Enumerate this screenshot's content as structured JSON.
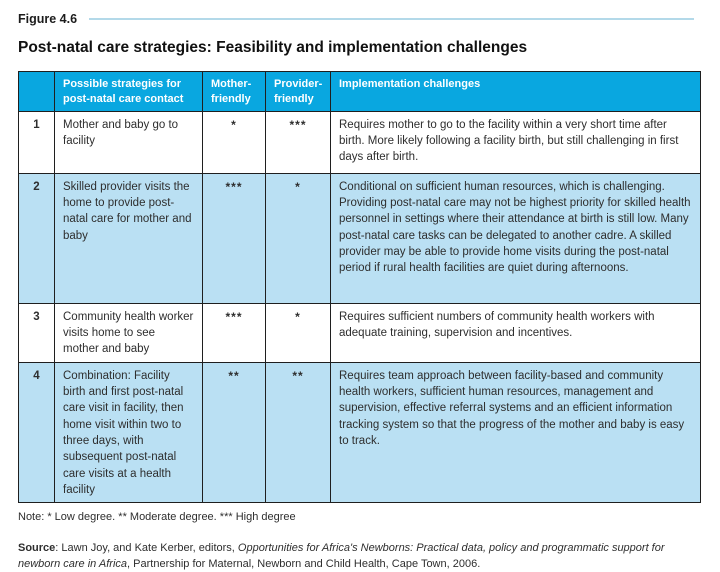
{
  "figure": {
    "label": "Figure 4.6",
    "title": "Post-natal care strategies: Feasibility and implementation challenges"
  },
  "table": {
    "headers": {
      "number": "",
      "strategy": "Possible strategies for post-natal care contact",
      "mother": "Mother-friendly",
      "provider": "Provider-friendly",
      "challenges": "Implementation challenges"
    },
    "rows": [
      {
        "number": "1",
        "strategy": "Mother and baby go to facility",
        "mother": "*",
        "provider": "***",
        "challenges": "Requires mother to go to the facility within a very short time after birth. More likely following a facility birth, but still challenging in first days after birth."
      },
      {
        "number": "2",
        "strategy": "Skilled provider visits the home to provide post-natal care for mother and baby",
        "mother": "***",
        "provider": "*",
        "challenges": "Conditional on sufficient human resources, which is challenging. Providing post-natal care may not be highest priority for skilled health personnel in settings where their attendance at birth is still low. Many post-natal care tasks can be delegated to another cadre. A skilled provider may be able to provide home visits during the post-natal period if rural health facilities are quiet during afternoons."
      },
      {
        "number": "3",
        "strategy": "Community health worker visits home to see mother and baby",
        "mother": "***",
        "provider": "*",
        "challenges": "Requires sufficient numbers of community health workers with adequate training, supervision and incentives."
      },
      {
        "number": "4",
        "strategy": "Combination: Facility birth and first post-natal care visit in facility, then home visit within two to three days, with subsequent post-natal care visits at a health facility",
        "mother": "**",
        "provider": "**",
        "challenges": "Requires team approach between facility-based and community health workers, sufficient human resources, management and supervision, effective referral systems and an efficient information tracking system so that the progress of the mother and baby is easy to track."
      }
    ]
  },
  "note": "Note: * Low degree. ** Moderate degree. *** High degree",
  "source": {
    "label": "Source",
    "pre_italic": ": Lawn Joy, and Kate Kerber, editors, ",
    "italic": "Opportunities for Africa's Newborns: Practical data, policy and programmatic support for newborn care in Africa",
    "post_italic": ", Partnership for Maternal, Newborn and Child Health, Cape Town, 2006."
  },
  "colors": {
    "header_bg": "#09a7e0",
    "row_alt_bg": "#bae0f3",
    "accent_line": "#b3d9e9",
    "border": "#1f1f1f"
  }
}
